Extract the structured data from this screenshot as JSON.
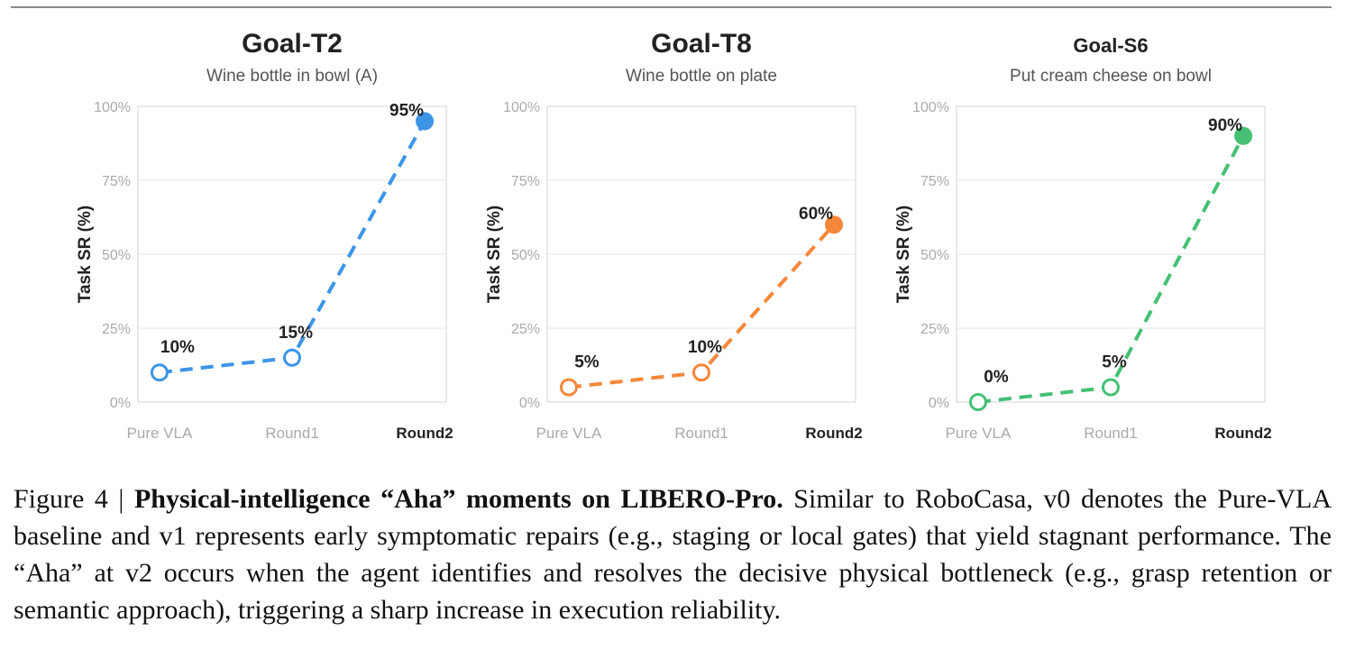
{
  "chart_data": [
    {
      "type": "line",
      "title": "Goal-T2",
      "subtitle": "Wine bottle in bowl (A)",
      "ylabel": "Task SR (%)",
      "categories": [
        "Pure VLA",
        "Round1",
        "Round2"
      ],
      "values": [
        10,
        15,
        95
      ],
      "data_labels": [
        "10%",
        "15%",
        "95%"
      ],
      "ylim": [
        0,
        100
      ],
      "yticks": [
        "0%",
        "25%",
        "50%",
        "75%",
        "100%"
      ],
      "color": "#3d95e8",
      "grid": true
    },
    {
      "type": "line",
      "title": "Goal-T8",
      "subtitle": "Wine bottle on plate",
      "ylabel": "Task SR (%)",
      "categories": [
        "Pure VLA",
        "Round1",
        "Round2"
      ],
      "values": [
        5,
        10,
        60
      ],
      "data_labels": [
        "5%",
        "10%",
        "60%"
      ],
      "ylim": [
        0,
        100
      ],
      "yticks": [
        "0%",
        "25%",
        "50%",
        "75%",
        "100%"
      ],
      "color": "#f5873a",
      "grid": true
    },
    {
      "type": "line",
      "title": "Goal-S6",
      "subtitle": "Put cream cheese on bowl",
      "ylabel": "Task SR (%)",
      "categories": [
        "Pure VLA",
        "Round1",
        "Round2"
      ],
      "values": [
        0,
        5,
        90
      ],
      "data_labels": [
        "0%",
        "5%",
        "90%"
      ],
      "ylim": [
        0,
        100
      ],
      "yticks": [
        "0%",
        "25%",
        "50%",
        "75%",
        "100%"
      ],
      "color": "#45c074",
      "grid": true
    }
  ],
  "caption": {
    "label": "Figure 4 | ",
    "bold": "Physical-intelligence “Aha” moments on LIBERO-Pro.",
    "text": " Similar to RoboCasa, v0 denotes the Pure-VLA baseline and v1 represents early symptomatic repairs (e.g., staging or local gates) that yield stagnant performance. The “Aha” at v2 occurs when the agent identifies and resolves the decisive physical bottleneck (e.g., grasp retention or semantic approach), triggering a sharp increase in execution reliability."
  }
}
